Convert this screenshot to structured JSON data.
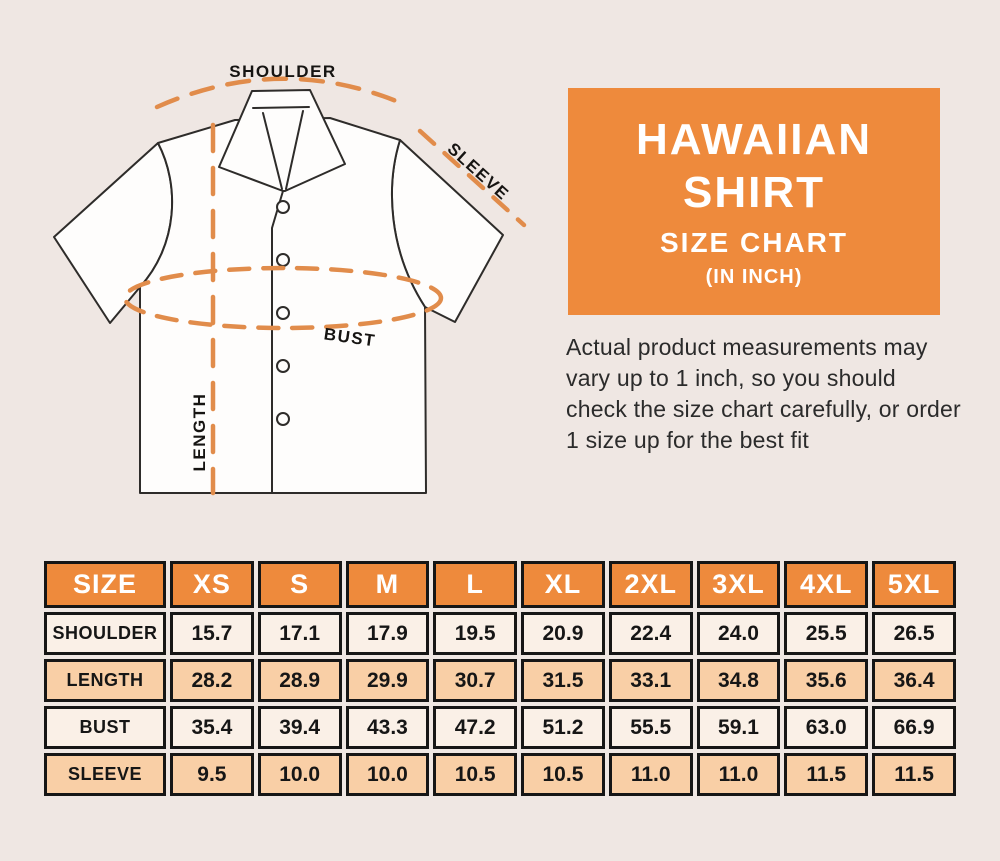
{
  "page": {
    "background_color": "#efe7e3",
    "accent_orange": "#ee8a3c",
    "dash_orange": "#e18c4b",
    "text_dark": "#161616",
    "row_cream": "#faf0e7",
    "row_peach": "#f9cfa6"
  },
  "diagram": {
    "labels": {
      "shoulder": "SHOULDER",
      "sleeve": "SLEEVE",
      "bust": "BUST",
      "length": "LENGTH"
    }
  },
  "title_box": {
    "line1": "HAWAIIAN",
    "line2": "SHIRT",
    "line3": "SIZE CHART",
    "line4": "(IN INCH)",
    "bg": "#ee8a3c",
    "text_color": "#ffffff"
  },
  "note": {
    "text": "Actual product measurements may vary up to 1 inch, so you should check the size chart carefully, or order 1 size up for the best fit"
  },
  "size_table": {
    "header": [
      "SIZE",
      "XS",
      "S",
      "M",
      "L",
      "XL",
      "2XL",
      "3XL",
      "4XL",
      "5XL"
    ],
    "rows": [
      {
        "label": "SHOULDER",
        "values": [
          "15.7",
          "17.1",
          "17.9",
          "19.5",
          "20.9",
          "22.4",
          "24.0",
          "25.5",
          "26.5"
        ]
      },
      {
        "label": "LENGTH",
        "values": [
          "28.2",
          "28.9",
          "29.9",
          "30.7",
          "31.5",
          "33.1",
          "34.8",
          "35.6",
          "36.4"
        ]
      },
      {
        "label": "BUST",
        "values": [
          "35.4",
          "39.4",
          "43.3",
          "47.2",
          "51.2",
          "55.5",
          "59.1",
          "63.0",
          "66.9"
        ]
      },
      {
        "label": "SLEEVE",
        "values": [
          "9.5",
          "10.0",
          "10.0",
          "10.5",
          "10.5",
          "11.0",
          "11.0",
          "11.5",
          "11.5"
        ]
      }
    ]
  },
  "chart_data": {
    "type": "table",
    "title": "HAWAIIAN SHIRT SIZE CHART (IN INCH)",
    "columns": [
      "SIZE",
      "XS",
      "S",
      "M",
      "L",
      "XL",
      "2XL",
      "3XL",
      "4XL",
      "5XL"
    ],
    "rows": [
      [
        "SHOULDER",
        15.7,
        17.1,
        17.9,
        19.5,
        20.9,
        22.4,
        24.0,
        25.5,
        26.5
      ],
      [
        "LENGTH",
        28.2,
        28.9,
        29.9,
        30.7,
        31.5,
        33.1,
        34.8,
        35.6,
        36.4
      ],
      [
        "BUST",
        35.4,
        39.4,
        43.3,
        47.2,
        51.2,
        55.5,
        59.1,
        63.0,
        66.9
      ],
      [
        "SLEEVE",
        9.5,
        10.0,
        10.0,
        10.5,
        10.5,
        11.0,
        11.0,
        11.5,
        11.5
      ]
    ]
  }
}
